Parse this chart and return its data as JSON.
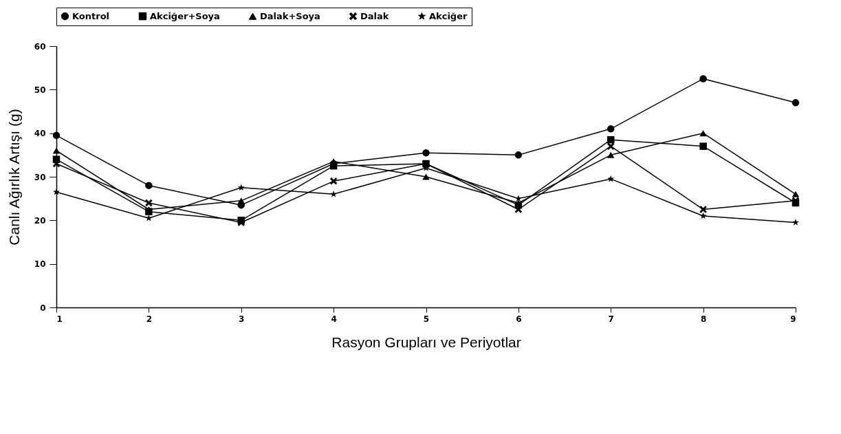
{
  "chart_data": {
    "type": "line",
    "xlabel": "Rasyon Grupları ve Periyotlar",
    "ylabel": "Canlı Ağırlık Artışı (g)",
    "x": [
      1,
      2,
      3,
      4,
      5,
      6,
      7,
      8,
      9
    ],
    "xlim": [
      1,
      9
    ],
    "xticks": [
      1,
      2,
      3,
      4,
      5,
      6,
      7,
      8,
      9
    ],
    "ylim": [
      0,
      60
    ],
    "yticks": [
      0,
      10,
      20,
      30,
      40,
      50,
      60
    ],
    "grid": false,
    "legend": "top",
    "line_style": "solid",
    "series": [
      {
        "name": "Kontrol",
        "color": "#000000",
        "marker": "circle",
        "values": [
          39.5,
          28,
          23.5,
          33,
          35.5,
          35,
          41,
          52.5,
          47
        ]
      },
      {
        "name": "Akciğer+Soya",
        "color": "#000000",
        "marker": "square",
        "values": [
          34,
          22,
          20,
          32.5,
          33,
          23.5,
          38.5,
          37,
          24
        ]
      },
      {
        "name": "Dalak+Soya",
        "color": "#000000",
        "marker": "triangle",
        "values": [
          36,
          22.5,
          24.5,
          33.5,
          30,
          24,
          35,
          40,
          26
        ]
      },
      {
        "name": "Dalak",
        "color": "#000000",
        "marker": "cross",
        "values": [
          33,
          24,
          19.5,
          29,
          33,
          22.5,
          37,
          22.5,
          24.5
        ]
      },
      {
        "name": "Akciğer",
        "color": "#000000",
        "marker": "star",
        "values": [
          26.5,
          20.5,
          27.5,
          26,
          32,
          25,
          29.5,
          21,
          19.5
        ]
      }
    ]
  }
}
